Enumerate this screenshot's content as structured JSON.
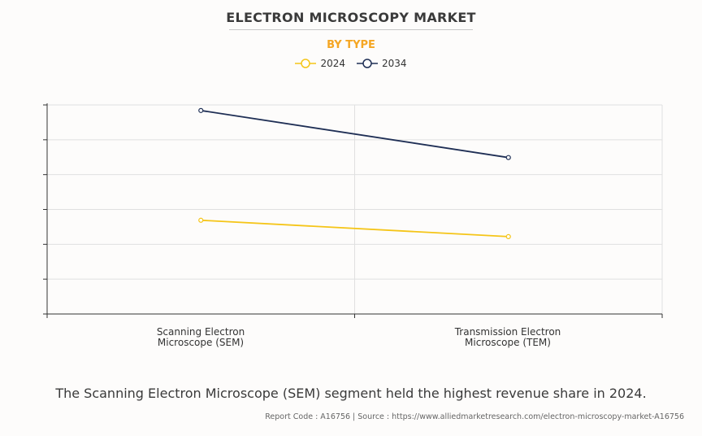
{
  "title": "ELECTRON MICROSCOPY MARKET",
  "subtitle": "BY TYPE",
  "footer_text": "The Scanning Electron Microscope (SEM) segment held the highest revenue share in 2024.",
  "source_text": "Report Code : A16756  |  Source : https://www.alliedmarketresearch.com/electron-microscopy-market-A16756",
  "chart_data": {
    "type": "line",
    "categories": [
      "Scanning Electron Microscope (SEM)",
      "Transmission Electron Microscope (TEM)"
    ],
    "category_lines": [
      [
        "Scanning Electron",
        "Microscope (SEM)"
      ],
      [
        "Transmission Electron",
        "Microscope (TEM)"
      ]
    ],
    "series": [
      {
        "name": "2024",
        "color": "#f5c518",
        "values": [
          2.69,
          2.22
        ]
      },
      {
        "name": "2034",
        "color": "#1f2f55",
        "values": [
          5.84,
          4.49
        ]
      }
    ],
    "ylim": [
      0,
      6
    ],
    "y_tick_labels_shown": false,
    "grid": true,
    "legend": "top-center"
  }
}
